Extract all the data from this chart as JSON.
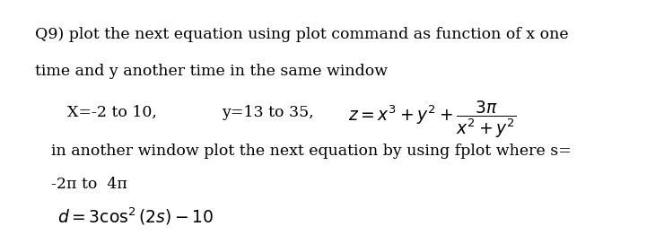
{
  "bg_color": "#f5f0d8",
  "white_bg": "#ffffff",
  "line1": "Q9) plot the next equation using plot command as function of x one",
  "line2": "time and y another time in the same window",
  "line3a": "X=-2 to 10,",
  "line3b": "y=13 to 35,",
  "line3c_math": "$z = x^3 + y^2 + \\dfrac{3\\pi}{x^2+y^2}$",
  "line4": "in another window plot the next equation by using fplot where s=",
  "line5": "-2π to  4π",
  "line6_math": "$d = 3\\cos^2(2s) - 10$",
  "font_size_main": 12.5,
  "font_size_math": 12.5,
  "top_bar_height": 0.06
}
